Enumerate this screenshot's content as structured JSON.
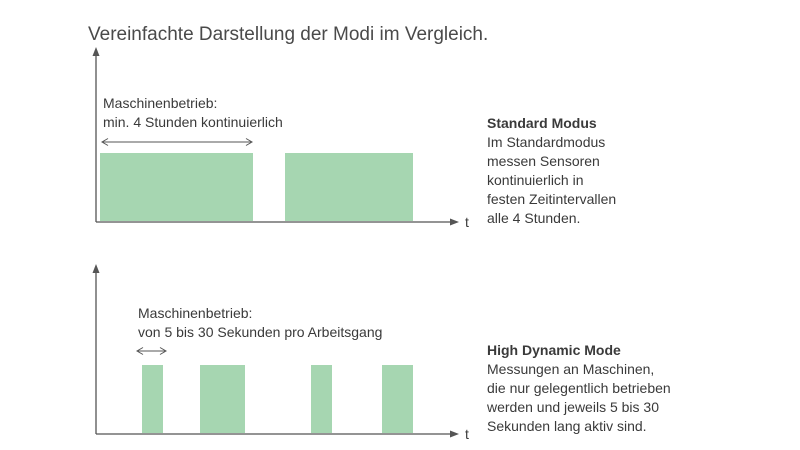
{
  "title": "Vereinfachte Darstellung der Modi im Vergleich.",
  "colors": {
    "bar": "#a6d6b1",
    "axis": "#555555",
    "text": "#3a3a3a"
  },
  "time_axis_label": "t",
  "standard": {
    "label_line1": "Maschinenbetrieb:",
    "label_line2": "min. 4 Stunden kontinuierlich",
    "heading": "Standard Modus",
    "lines": [
      "Im Standardmodus",
      "messen Sensoren",
      "kontinuierlich in",
      "festen Zeitintervallen",
      "alle 4 Stunden."
    ]
  },
  "high_dynamic": {
    "label_line1": "Maschinenbetrieb:",
    "label_line2": "von 5 bis 30 Sekunden pro Arbeitsgang",
    "heading": "High Dynamic Mode",
    "lines": [
      "Messungen an Maschinen,",
      "die nur gelegentlich betrieben",
      "werden und jeweils 5 bis 30",
      "Sekunden lang aktiv sind."
    ]
  }
}
